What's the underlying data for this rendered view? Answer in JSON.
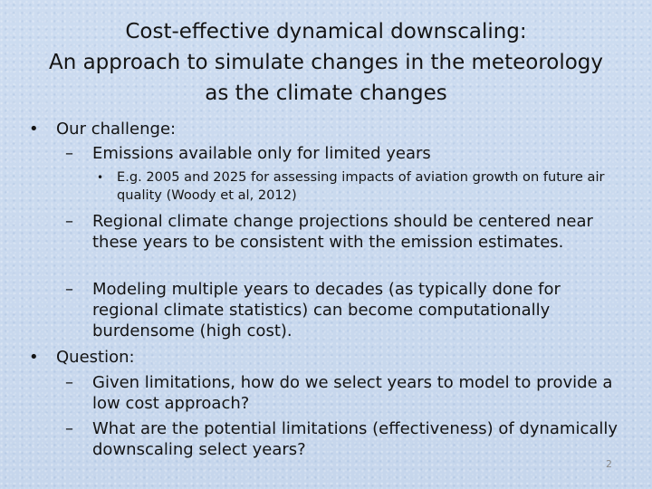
{
  "slide": {
    "title_lines": [
      "Cost-effective dynamical downscaling:",
      "An approach to simulate changes in the meteorology",
      "as the climate changes"
    ],
    "bullets": {
      "challenge": "Our challenge:",
      "emissions": "Emissions available only for limited years",
      "example": "E.g. 2005 and 2025 for assessing impacts of aviation growth on future air quality (Woody et al, 2012)",
      "regional": "Regional climate change projections should be centered near these years to be consistent with the emission estimates.",
      "modeling": "Modeling multiple years to decades (as typically done for regional climate statistics) can become computationally burdensome (high cost).",
      "question": "Question:",
      "given": "Given limitations, how do we select years to model to provide a low cost approach?",
      "potential": " What are the potential limitations (effectiveness) of dynamically downscaling select years?"
    },
    "markers": {
      "level1": "•",
      "level2": "–",
      "level3": "•"
    },
    "page_number": "2"
  }
}
